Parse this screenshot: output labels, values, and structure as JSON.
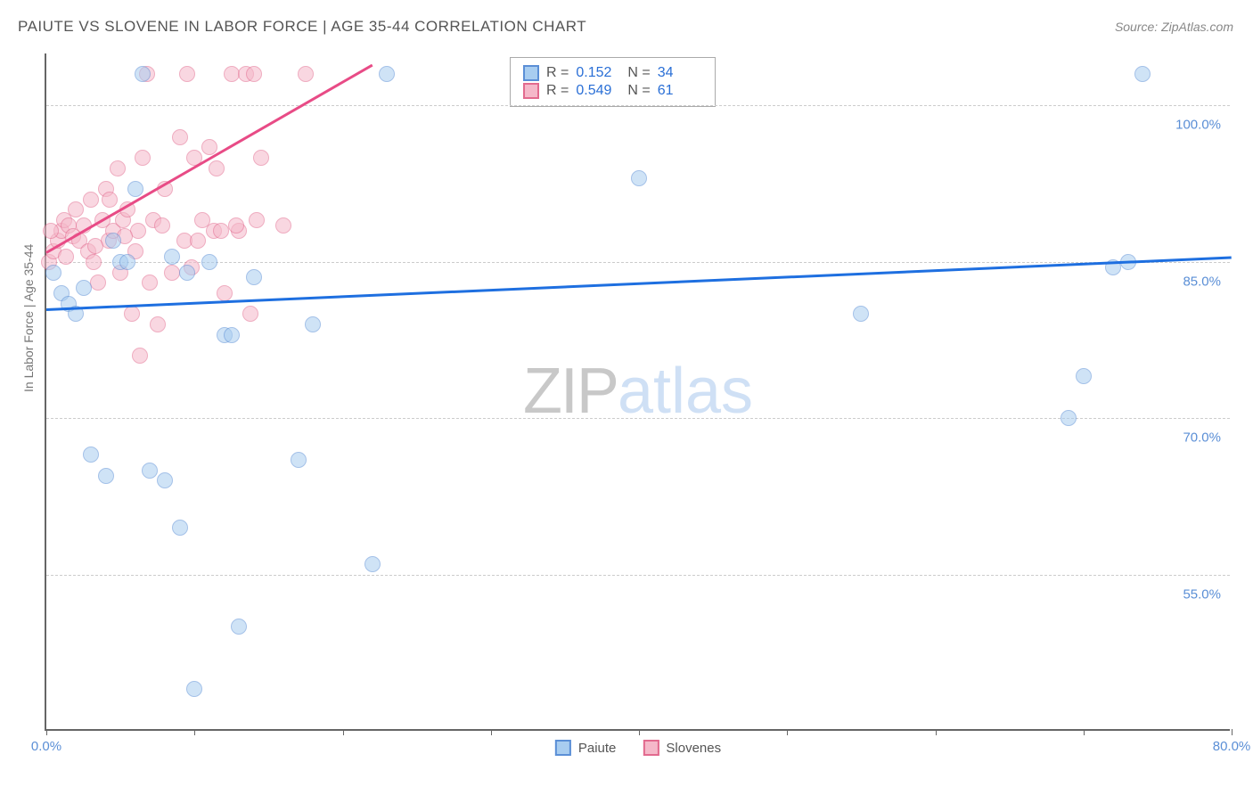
{
  "title": "PAIUTE VS SLOVENE IN LABOR FORCE | AGE 35-44 CORRELATION CHART",
  "source": "Source: ZipAtlas.com",
  "ylabel": "In Labor Force | Age 35-44",
  "watermark_a": "ZIP",
  "watermark_b": "atlas",
  "chart": {
    "type": "scatter",
    "xlim": [
      0,
      80
    ],
    "ylim": [
      40,
      105
    ],
    "y_ticks": [
      55.0,
      70.0,
      85.0,
      100.0
    ],
    "y_tick_labels": [
      "55.0%",
      "70.0%",
      "85.0%",
      "100.0%"
    ],
    "x_ticks": [
      0,
      10,
      20,
      30,
      40,
      50,
      60,
      70,
      80
    ],
    "x_tick_labels": {
      "0": "0.0%",
      "80": "80.0%"
    },
    "background_color": "#ffffff",
    "grid_color": "#cccccc",
    "marker_size": 18,
    "marker_opacity": 0.55,
    "series": [
      {
        "name": "Paiute",
        "color_fill": "#a8cdf0",
        "color_stroke": "#5b8fd6",
        "trend_color": "#1e6fe0",
        "trend": {
          "x1": 0,
          "y1": 80.5,
          "x2": 80,
          "y2": 85.5
        },
        "stats": {
          "R": "0.152",
          "N": "34"
        },
        "points": [
          [
            0.5,
            84
          ],
          [
            1,
            82
          ],
          [
            1.5,
            81
          ],
          [
            2,
            80
          ],
          [
            3,
            66.5
          ],
          [
            4,
            64.5
          ],
          [
            4.5,
            87
          ],
          [
            5,
            85
          ],
          [
            5.5,
            85
          ],
          [
            6,
            92
          ],
          [
            6.5,
            103
          ],
          [
            7,
            65
          ],
          [
            8,
            64
          ],
          [
            8.5,
            85.5
          ],
          [
            9,
            59.5
          ],
          [
            9.5,
            84
          ],
          [
            10,
            44
          ],
          [
            11,
            85
          ],
          [
            12,
            78
          ],
          [
            12.5,
            78
          ],
          [
            13,
            50
          ],
          [
            14,
            83.5
          ],
          [
            17,
            66
          ],
          [
            18,
            79
          ],
          [
            22,
            56
          ],
          [
            23,
            103
          ],
          [
            40,
            93
          ],
          [
            55,
            80
          ],
          [
            69,
            70
          ],
          [
            70,
            74
          ],
          [
            72,
            84.5
          ],
          [
            73,
            85
          ],
          [
            74,
            103
          ],
          [
            2.5,
            82.5
          ]
        ]
      },
      {
        "name": "Slovenes",
        "color_fill": "#f5b8c9",
        "color_stroke": "#e26a8e",
        "trend_color": "#e84b86",
        "trend": {
          "x1": 0,
          "y1": 86,
          "x2": 22,
          "y2": 104
        },
        "stats": {
          "R": "0.549",
          "N": "61"
        },
        "points": [
          [
            0.2,
            85
          ],
          [
            0.5,
            86
          ],
          [
            0.8,
            87
          ],
          [
            1,
            88
          ],
          [
            1.2,
            89
          ],
          [
            1.5,
            88.5
          ],
          [
            1.8,
            87.5
          ],
          [
            2,
            90
          ],
          [
            2.2,
            87
          ],
          [
            2.5,
            88.5
          ],
          [
            2.8,
            86
          ],
          [
            3,
            91
          ],
          [
            3.2,
            85
          ],
          [
            3.5,
            83
          ],
          [
            3.8,
            89
          ],
          [
            4,
            92
          ],
          [
            4.2,
            87
          ],
          [
            4.5,
            88
          ],
          [
            4.8,
            94
          ],
          [
            5,
            84
          ],
          [
            5.2,
            89
          ],
          [
            5.5,
            90
          ],
          [
            5.8,
            80
          ],
          [
            6,
            86
          ],
          [
            6.2,
            88
          ],
          [
            6.5,
            95
          ],
          [
            6.8,
            103
          ],
          [
            7,
            83
          ],
          [
            7.2,
            89
          ],
          [
            7.5,
            79
          ],
          [
            7.8,
            88.5
          ],
          [
            8,
            92
          ],
          [
            8.5,
            84
          ],
          [
            9,
            97
          ],
          [
            9.3,
            87
          ],
          [
            9.5,
            103
          ],
          [
            10,
            95
          ],
          [
            10.2,
            87
          ],
          [
            10.5,
            89
          ],
          [
            11,
            96
          ],
          [
            11.3,
            88
          ],
          [
            11.5,
            94
          ],
          [
            12,
            82
          ],
          [
            12.5,
            103
          ],
          [
            13,
            88
          ],
          [
            13.5,
            103
          ],
          [
            14,
            103
          ],
          [
            14.2,
            89
          ],
          [
            14.5,
            95
          ],
          [
            13.8,
            80
          ],
          [
            12.8,
            88.5
          ],
          [
            9.8,
            84.5
          ],
          [
            11.8,
            88
          ],
          [
            6.3,
            76
          ],
          [
            16,
            88.5
          ],
          [
            17.5,
            103
          ],
          [
            0.3,
            88
          ],
          [
            1.3,
            85.5
          ],
          [
            3.3,
            86.5
          ],
          [
            4.3,
            91
          ],
          [
            5.3,
            87.5
          ]
        ]
      }
    ]
  },
  "stat_box": {
    "rows": [
      {
        "swatch_fill": "#a8cdf0",
        "swatch_stroke": "#5b8fd6",
        "R_label": "R =",
        "R": "0.152",
        "N_label": "N =",
        "N": "34"
      },
      {
        "swatch_fill": "#f5b8c9",
        "swatch_stroke": "#e26a8e",
        "R_label": "R =",
        "R": "0.549",
        "N_label": "N =",
        "N": "61"
      }
    ]
  },
  "legend": [
    {
      "swatch_fill": "#a8cdf0",
      "swatch_stroke": "#5b8fd6",
      "label": "Paiute"
    },
    {
      "swatch_fill": "#f5b8c9",
      "swatch_stroke": "#e26a8e",
      "label": "Slovenes"
    }
  ]
}
